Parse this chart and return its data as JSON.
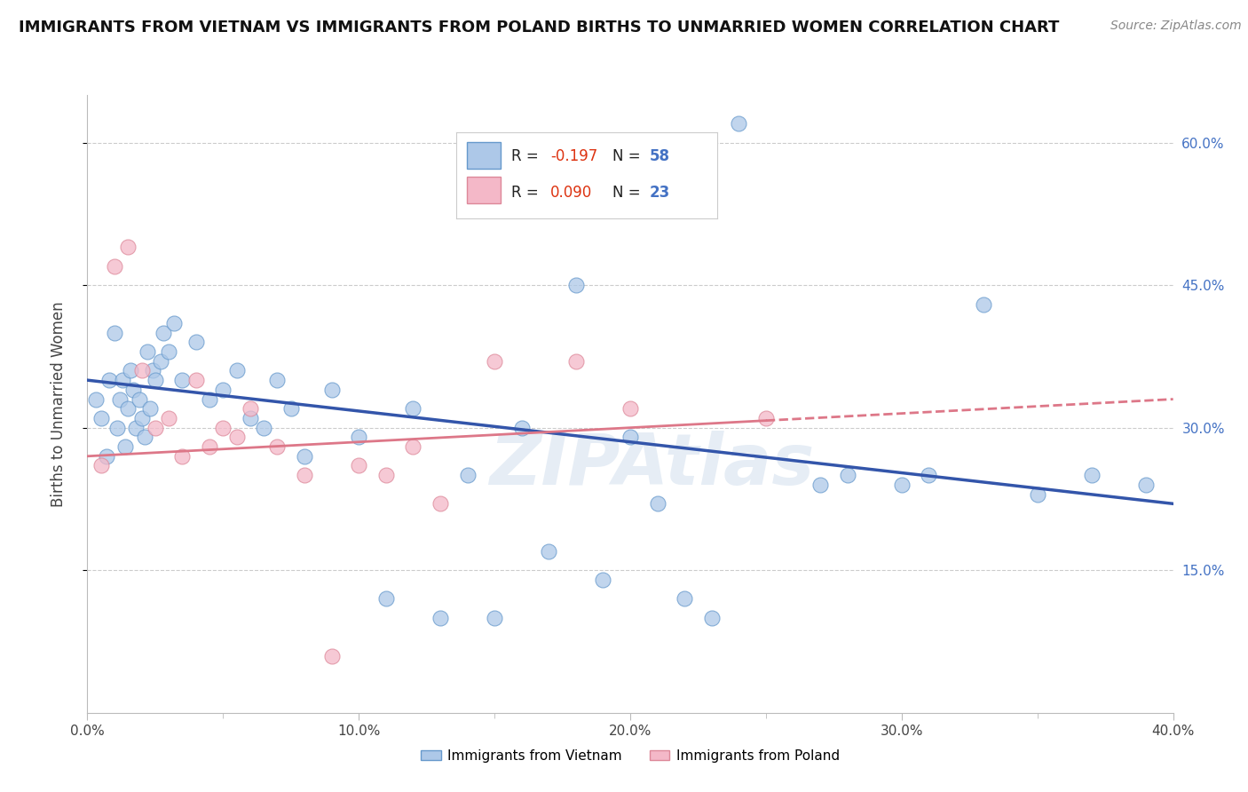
{
  "title": "IMMIGRANTS FROM VIETNAM VS IMMIGRANTS FROM POLAND BIRTHS TO UNMARRIED WOMEN CORRELATION CHART",
  "source": "Source: ZipAtlas.com",
  "ylabel": "Births to Unmarried Women",
  "x_min": 0.0,
  "x_max": 40.0,
  "y_min": 0.0,
  "y_max": 65.0,
  "y_ticks": [
    15.0,
    30.0,
    45.0,
    60.0
  ],
  "x_ticks_major": [
    0.0,
    10.0,
    20.0,
    30.0,
    40.0
  ],
  "x_ticks_minor": [
    5.0,
    15.0,
    25.0,
    35.0
  ],
  "vietnam_color": "#adc8e8",
  "poland_color": "#f4b8c8",
  "vietnam_edge_color": "#6699cc",
  "poland_edge_color": "#dd8899",
  "vietnam_line_color": "#3355aa",
  "poland_line_color": "#dd7788",
  "legend_r1_val": "-0.197",
  "legend_n1_val": "58",
  "legend_r2_val": "0.090",
  "legend_n2_val": "23",
  "vietnam_label": "Immigrants from Vietnam",
  "poland_label": "Immigrants from Poland",
  "vietnam_x": [
    0.3,
    0.5,
    0.7,
    0.8,
    1.0,
    1.1,
    1.2,
    1.3,
    1.4,
    1.5,
    1.6,
    1.7,
    1.8,
    1.9,
    2.0,
    2.1,
    2.2,
    2.3,
    2.4,
    2.5,
    2.7,
    2.8,
    3.0,
    3.2,
    3.5,
    4.0,
    4.5,
    5.0,
    5.5,
    6.0,
    6.5,
    7.0,
    7.5,
    8.0,
    9.0,
    10.0,
    11.0,
    12.0,
    13.0,
    14.0,
    15.0,
    16.0,
    17.0,
    18.0,
    19.0,
    20.0,
    21.0,
    22.0,
    23.0,
    24.0,
    27.0,
    28.0,
    30.0,
    31.0,
    33.0,
    35.0,
    37.0,
    39.0
  ],
  "vietnam_y": [
    33.0,
    31.0,
    27.0,
    35.0,
    40.0,
    30.0,
    33.0,
    35.0,
    28.0,
    32.0,
    36.0,
    34.0,
    30.0,
    33.0,
    31.0,
    29.0,
    38.0,
    32.0,
    36.0,
    35.0,
    37.0,
    40.0,
    38.0,
    41.0,
    35.0,
    39.0,
    33.0,
    34.0,
    36.0,
    31.0,
    30.0,
    35.0,
    32.0,
    27.0,
    34.0,
    29.0,
    12.0,
    32.0,
    10.0,
    25.0,
    10.0,
    30.0,
    17.0,
    45.0,
    14.0,
    29.0,
    22.0,
    12.0,
    10.0,
    62.0,
    24.0,
    25.0,
    24.0,
    25.0,
    43.0,
    23.0,
    25.0,
    24.0
  ],
  "poland_x": [
    0.5,
    1.0,
    1.5,
    2.0,
    2.5,
    3.0,
    3.5,
    4.0,
    4.5,
    5.0,
    5.5,
    6.0,
    7.0,
    8.0,
    9.0,
    10.0,
    11.0,
    12.0,
    13.0,
    15.0,
    18.0,
    20.0,
    25.0
  ],
  "poland_y": [
    26.0,
    47.0,
    49.0,
    36.0,
    30.0,
    31.0,
    27.0,
    35.0,
    28.0,
    30.0,
    29.0,
    32.0,
    28.0,
    25.0,
    6.0,
    26.0,
    25.0,
    28.0,
    22.0,
    37.0,
    37.0,
    32.0,
    31.0
  ],
  "watermark": "ZIPAtlas",
  "background_color": "#ffffff",
  "grid_color": "#cccccc",
  "title_fontsize": 13,
  "source_fontsize": 10
}
